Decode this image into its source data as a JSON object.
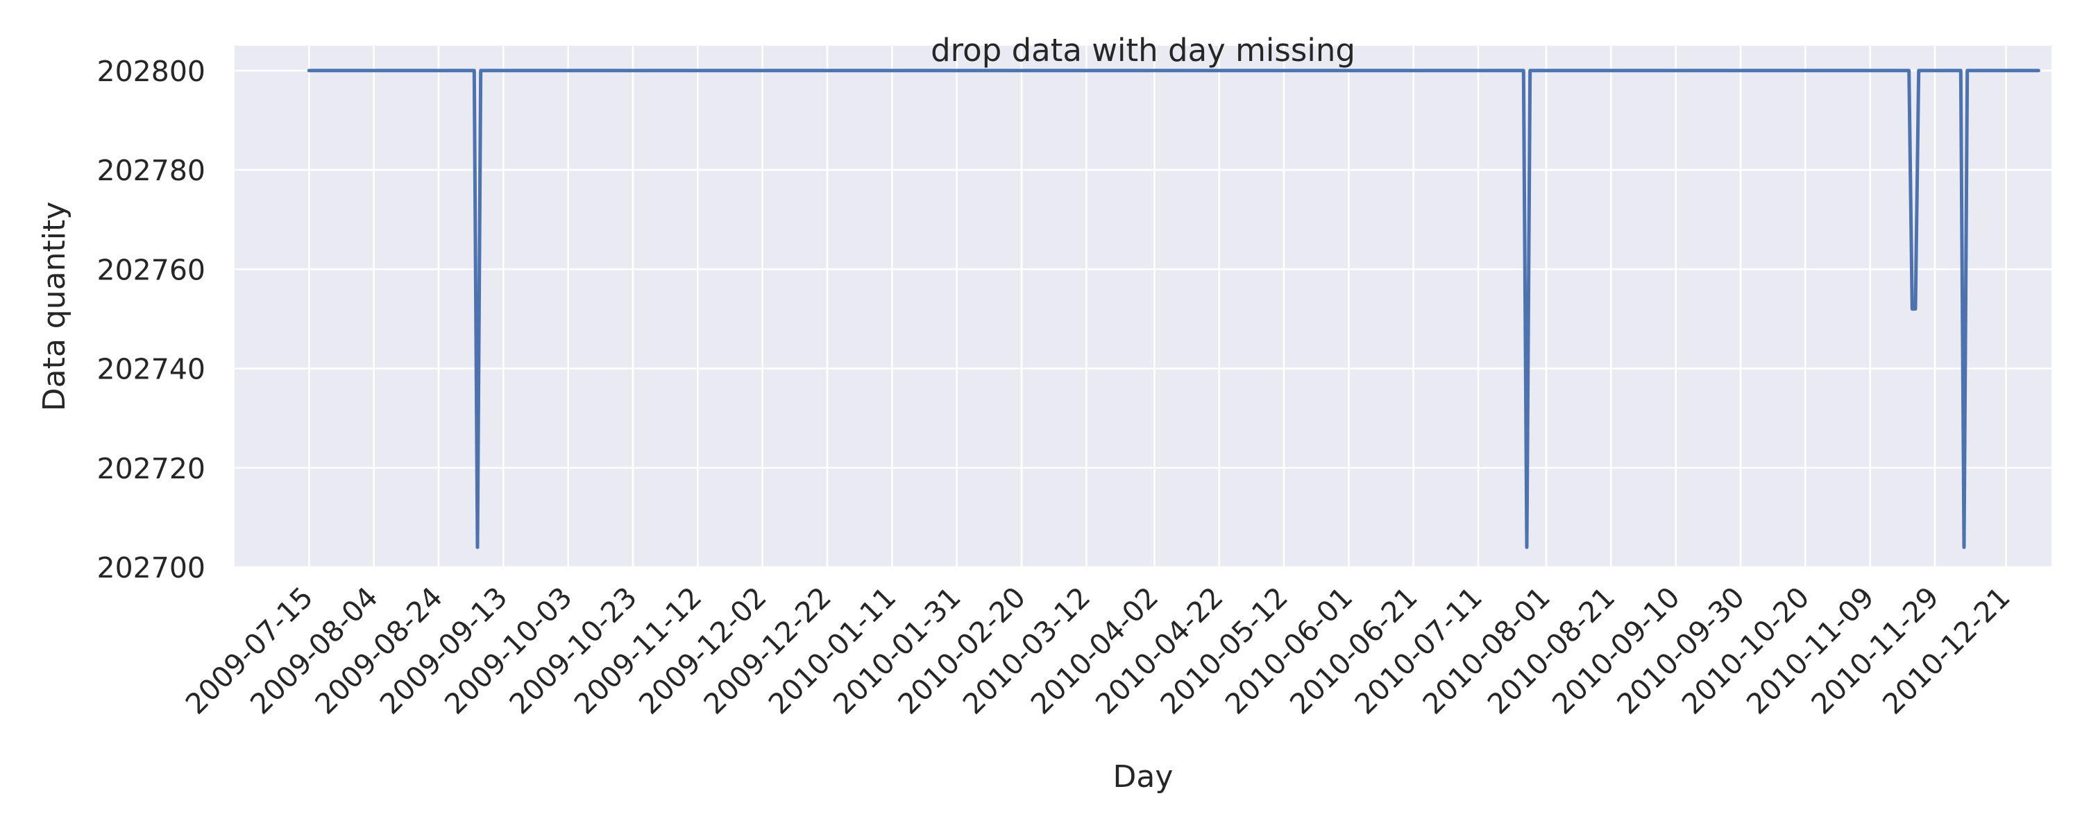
{
  "chart_data": {
    "type": "line",
    "title": "drop data with day missing",
    "xlabel": "Day",
    "ylabel": "Data quantity",
    "ylim": [
      202700,
      202800
    ],
    "xlim": [
      "2009-06-22",
      "2011-01-04"
    ],
    "grid": true,
    "background": "#eaeaf2",
    "grid_color": "#ffffff",
    "line_color": "#4c72b0",
    "y_ticks": [
      {
        "value": 202700,
        "label": "202700"
      },
      {
        "value": 202720,
        "label": "202720"
      },
      {
        "value": 202740,
        "label": "202740"
      },
      {
        "value": 202760,
        "label": "202760"
      },
      {
        "value": 202780,
        "label": "202780"
      },
      {
        "value": 202800,
        "label": "202800"
      }
    ],
    "x_ticks": [
      "2009-07-15",
      "2009-08-04",
      "2009-08-24",
      "2009-09-13",
      "2009-10-03",
      "2009-10-23",
      "2009-11-12",
      "2009-12-02",
      "2009-12-22",
      "2010-01-11",
      "2010-01-31",
      "2010-02-20",
      "2010-03-12",
      "2010-04-02",
      "2010-04-22",
      "2010-05-12",
      "2010-06-01",
      "2010-06-21",
      "2010-07-11",
      "2010-08-01",
      "2010-08-21",
      "2010-09-10",
      "2010-09-30",
      "2010-10-20",
      "2010-11-09",
      "2010-11-29",
      "2010-12-21"
    ],
    "series": [
      {
        "x": [
          "2009-07-15",
          "2009-09-04",
          "2009-09-05",
          "2009-09-06",
          "2010-07-25",
          "2010-07-26",
          "2010-07-27",
          "2010-11-21",
          "2010-11-22",
          "2010-11-23",
          "2010-11-24",
          "2010-12-07",
          "2010-12-08",
          "2010-12-09",
          "2010-12-31"
        ],
        "values": [
          202800,
          202800,
          202704,
          202800,
          202800,
          202704,
          202800,
          202800,
          202752,
          202752,
          202800,
          202800,
          202704,
          202800,
          202800
        ]
      }
    ]
  }
}
